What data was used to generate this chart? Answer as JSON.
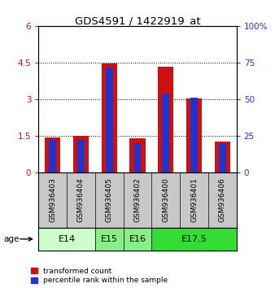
{
  "title": "GDS4591 / 1422919_at",
  "samples": [
    "GSM936403",
    "GSM936404",
    "GSM936405",
    "GSM936402",
    "GSM936400",
    "GSM936401",
    "GSM936406"
  ],
  "transformed_count": [
    1.45,
    1.5,
    4.48,
    1.42,
    4.35,
    3.05,
    1.28
  ],
  "percentile_rank_left": [
    1.35,
    1.35,
    4.3,
    1.22,
    3.25,
    3.08,
    1.22
  ],
  "left_ylim": [
    0,
    6
  ],
  "right_ylim": [
    0,
    100
  ],
  "left_yticks": [
    0,
    1.5,
    3,
    4.5,
    6
  ],
  "right_yticks": [
    0,
    25,
    50,
    75,
    100
  ],
  "left_yticklabels": [
    "0",
    "1.5",
    "3",
    "4.5",
    "6"
  ],
  "right_yticklabels": [
    "0",
    "25",
    "50",
    "75",
    "100%"
  ],
  "bar_color": "#cc1111",
  "percentile_color": "#2233cc",
  "bg_color": "#c8c8c8",
  "age_groups": [
    {
      "label": "E14",
      "samples": [
        0,
        1
      ],
      "color": "#ccffcc"
    },
    {
      "label": "E15",
      "samples": [
        2
      ],
      "color": "#88ee88"
    },
    {
      "label": "E16",
      "samples": [
        3
      ],
      "color": "#88ee88"
    },
    {
      "label": "E17.5",
      "samples": [
        4,
        5,
        6
      ],
      "color": "#33dd33"
    }
  ],
  "legend_red_label": "transformed count",
  "legend_blue_label": "percentile rank within the sample",
  "red_bar_width": 0.55,
  "blue_bar_width": 0.25,
  "age_label": "age"
}
